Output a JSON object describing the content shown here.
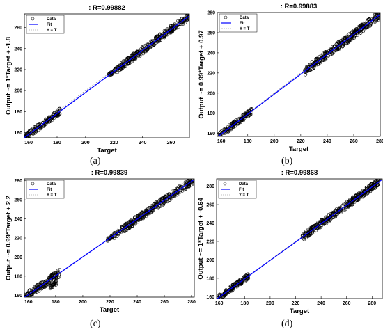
{
  "chart_data": [
    {
      "type": "scatter",
      "panel": "(a)",
      "title": ": R=0.99882",
      "xlabel": "Target",
      "ylabel": "Output ~= 1*Target + -1.8",
      "xlim": [
        157,
        273
      ],
      "ylim": [
        155,
        273
      ],
      "xticks": [
        160,
        180,
        200,
        220,
        240,
        260
      ],
      "yticks": [
        160,
        180,
        200,
        220,
        240,
        260
      ],
      "fit": {
        "slope": 1,
        "intercept": -1.8
      },
      "legend": {
        "position": "top-left",
        "entries": [
          "Data",
          "Fit",
          "Y = T"
        ]
      },
      "clusters": [
        {
          "x": [
            157,
            182
          ],
          "spread": 3
        },
        {
          "x": [
            216,
            221
          ],
          "spread": 1.5
        },
        {
          "x": [
            222,
            273
          ],
          "spread": 3.5
        }
      ]
    },
    {
      "type": "scatter",
      "panel": "(b)",
      "title": ": R=0.99883",
      "xlabel": "Target",
      "ylabel": "Output ~= 0.99*Target + 0.97",
      "xlim": [
        157,
        280
      ],
      "ylim": [
        157,
        280
      ],
      "xticks": [
        160,
        180,
        200,
        220,
        240,
        260,
        280
      ],
      "yticks": [
        160,
        180,
        200,
        220,
        240,
        260,
        280
      ],
      "fit": {
        "slope": 0.99,
        "intercept": 0.97
      },
      "legend": {
        "position": "top-left",
        "entries": [
          "Data",
          "Fit",
          "Y = T"
        ]
      },
      "clusters": [
        {
          "x": [
            158,
            183
          ],
          "spread": 3
        },
        {
          "x": [
            223,
            280
          ],
          "spread": 4
        }
      ]
    },
    {
      "type": "scatter",
      "panel": "(c)",
      "title": ": R=0.99839",
      "xlabel": "Target",
      "ylabel": "Output ~= 0.99*Target + 2.2",
      "xlim": [
        157,
        282
      ],
      "ylim": [
        158,
        282
      ],
      "xticks": [
        160,
        180,
        200,
        220,
        240,
        260,
        280
      ],
      "yticks": [
        160,
        180,
        200,
        220,
        240,
        260,
        280
      ],
      "fit": {
        "slope": 0.99,
        "intercept": 2.2
      },
      "legend": {
        "position": "top-left",
        "entries": [
          "Data",
          "Fit",
          "Y = T"
        ]
      },
      "clusters": [
        {
          "x": [
            157,
            183
          ],
          "spread": 4
        },
        {
          "x": [
            176,
            181
          ],
          "spread": 2,
          "yOffset": -8
        },
        {
          "x": [
            218,
            222
          ],
          "spread": 1.5
        },
        {
          "x": [
            223,
            281
          ],
          "spread": 4
        }
      ]
    },
    {
      "type": "scatter",
      "panel": "(d)",
      "title": ": R=0.99868",
      "xlabel": "Target",
      "ylabel": "Output ~= 1*Target + -0.64",
      "xlim": [
        158,
        288
      ],
      "ylim": [
        158,
        288
      ],
      "xticks": [
        160,
        180,
        200,
        220,
        240,
        260,
        280
      ],
      "yticks": [
        160,
        180,
        200,
        220,
        240,
        260,
        280
      ],
      "fit": {
        "slope": 1,
        "intercept": -0.64
      },
      "legend": {
        "position": "top-left",
        "entries": [
          "Data",
          "Fit",
          "Y = T"
        ]
      },
      "clusters": [
        {
          "x": [
            159,
            183
          ],
          "spread": 3
        },
        {
          "x": [
            225,
            286
          ],
          "spread": 4
        }
      ]
    }
  ],
  "colors": {
    "data_marker": "#000000",
    "fit_line": "#0000ff",
    "identity_line": "#808080",
    "axis": "#000000"
  }
}
